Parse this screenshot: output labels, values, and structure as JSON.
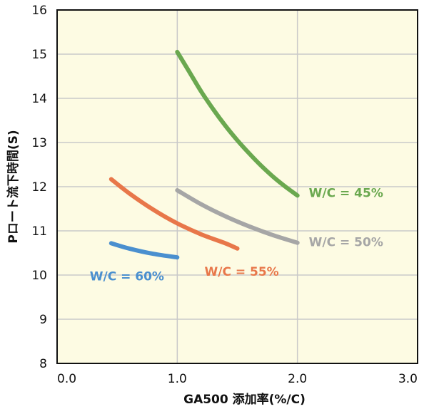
{
  "chart_data": {
    "type": "line",
    "title": "",
    "xlabel": "GA500 添加率(%/C)",
    "ylabel": "Pロート流下時間(S)",
    "xlim": [
      0,
      3
    ],
    "ylim": [
      8,
      16
    ],
    "xticks": [
      "0.0",
      "1.0",
      "2.0",
      "3.0"
    ],
    "yticks": [
      "8",
      "9",
      "10",
      "11",
      "12",
      "13",
      "14",
      "15",
      "16"
    ],
    "grid": true,
    "plot_background": "#fdfbe3",
    "series": [
      {
        "name": "W/C = 45%",
        "color": "#6aa84f",
        "x": [
          1.0,
          1.1,
          1.2,
          1.3,
          1.4,
          1.5,
          1.6,
          1.7,
          1.8,
          1.9,
          2.0
        ],
        "y": [
          15.05,
          14.6,
          14.15,
          13.75,
          13.38,
          13.05,
          12.75,
          12.47,
          12.22,
          12.0,
          11.8
        ]
      },
      {
        "name": "W/C = 50%",
        "color": "#a6a6a6",
        "x": [
          1.0,
          1.2,
          1.4,
          1.6,
          1.8,
          2.0
        ],
        "y": [
          11.92,
          11.6,
          11.33,
          11.1,
          10.9,
          10.73
        ]
      },
      {
        "name": "W/C = 55%",
        "color": "#e8774a",
        "x": [
          0.45,
          0.6,
          0.8,
          1.0,
          1.2,
          1.4,
          1.5
        ],
        "y": [
          12.17,
          11.85,
          11.48,
          11.17,
          10.92,
          10.72,
          10.6
        ]
      },
      {
        "name": "W/C = 60%",
        "color": "#4a8fcf",
        "x": [
          0.45,
          0.6,
          0.8,
          1.0
        ],
        "y": [
          10.72,
          10.6,
          10.48,
          10.4
        ]
      }
    ]
  }
}
